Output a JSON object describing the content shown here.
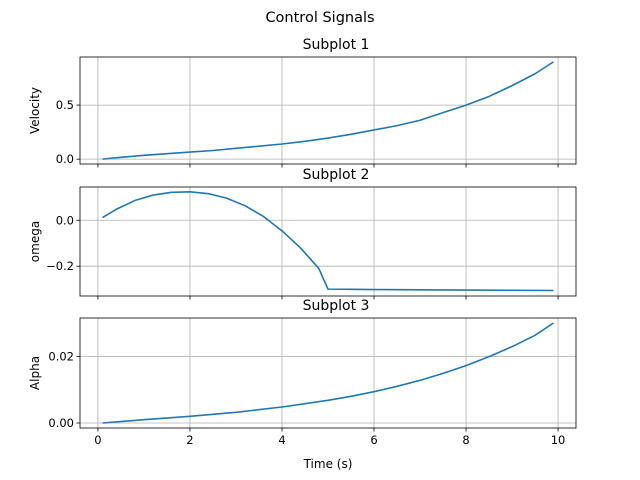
{
  "figure": {
    "suptitle": "Control Signals",
    "xlabel": "Time (s)"
  },
  "chart_data": [
    {
      "type": "line",
      "title": "Subplot 1",
      "ylabel": "Velocity",
      "xlim": [
        -0.39,
        10.39
      ],
      "ylim": [
        -0.045,
        0.945
      ],
      "xticks": [
        0,
        2,
        4,
        6,
        8,
        10
      ],
      "yticks": [
        0.0,
        0.5
      ],
      "ytick_labels": [
        "0.0",
        "0.5"
      ],
      "show_xticklabels": false,
      "grid": true,
      "line_color": "#1f77b4",
      "series": [
        {
          "x": [
            0.1,
            0.5,
            1,
            1.5,
            2,
            2.5,
            3,
            3.5,
            4,
            4.5,
            5,
            5.5,
            6,
            6.5,
            7,
            7.5,
            8,
            8.5,
            9,
            9.5,
            9.9
          ],
          "y": [
            0.0,
            0.017,
            0.035,
            0.05,
            0.065,
            0.08,
            0.1,
            0.12,
            0.14,
            0.165,
            0.195,
            0.23,
            0.27,
            0.31,
            0.36,
            0.43,
            0.5,
            0.58,
            0.68,
            0.79,
            0.9
          ]
        }
      ]
    },
    {
      "type": "line",
      "title": "Subplot 2",
      "ylabel": "omega",
      "xlim": [
        -0.39,
        10.39
      ],
      "ylim": [
        -0.33,
        0.145
      ],
      "xticks": [
        0,
        2,
        4,
        6,
        8,
        10
      ],
      "yticks": [
        0.0,
        -0.2
      ],
      "ytick_labels": [
        "0.0",
        "−0.2"
      ],
      "show_xticklabels": false,
      "grid": true,
      "line_color": "#1f77b4",
      "series": [
        {
          "x": [
            0.1,
            0.4,
            0.8,
            1.2,
            1.6,
            2.0,
            2.4,
            2.8,
            3.2,
            3.6,
            4.0,
            4.4,
            4.8,
            5.0,
            5.5,
            6,
            7,
            8,
            9,
            9.9
          ],
          "y": [
            0.012,
            0.048,
            0.086,
            0.11,
            0.122,
            0.124,
            0.116,
            0.096,
            0.063,
            0.016,
            -0.046,
            -0.12,
            -0.21,
            -0.3,
            -0.301,
            -0.302,
            -0.303,
            -0.304,
            -0.305,
            -0.306
          ]
        }
      ]
    },
    {
      "type": "line",
      "title": "Subplot 3",
      "ylabel": "Alpha",
      "xlim": [
        -0.39,
        10.39
      ],
      "ylim": [
        -0.0015,
        0.0315
      ],
      "xticks": [
        0,
        2,
        4,
        6,
        8,
        10
      ],
      "xtick_labels": [
        "0",
        "2",
        "4",
        "6",
        "8",
        "10"
      ],
      "yticks": [
        0.0,
        0.02
      ],
      "ytick_labels": [
        "0.00",
        "0.02"
      ],
      "show_xticklabels": true,
      "grid": true,
      "line_color": "#1f77b4",
      "series": [
        {
          "x": [
            0.1,
            1,
            2,
            3,
            4,
            5,
            5.5,
            6,
            6.5,
            7,
            7.5,
            8,
            8.5,
            9,
            9.5,
            9.9
          ],
          "y": [
            0.0,
            0.001,
            0.002,
            0.0032,
            0.0048,
            0.0068,
            0.008,
            0.0094,
            0.011,
            0.0128,
            0.0149,
            0.0172,
            0.0199,
            0.0229,
            0.0263,
            0.03
          ]
        }
      ]
    }
  ]
}
